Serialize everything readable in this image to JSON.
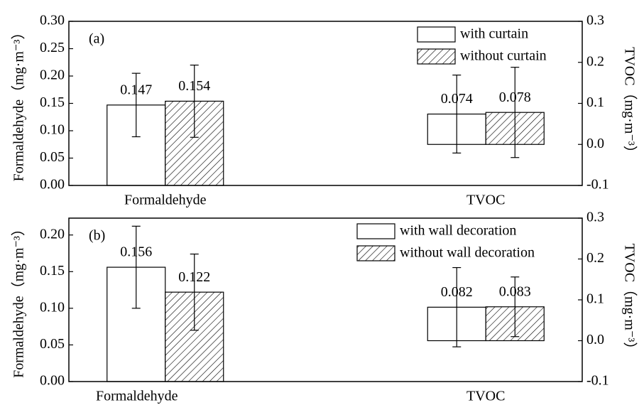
{
  "chart_data": [
    {
      "type": "bar",
      "panel_label": "(a)",
      "categories": [
        "Formaldehyde",
        "TVOC"
      ],
      "category_axis": [
        "y",
        "y2"
      ],
      "series": [
        {
          "name": "with curtain",
          "color": "#ffffff",
          "pattern": "none",
          "values": [
            0.147,
            0.074
          ],
          "errors": [
            0.058,
            0.095
          ]
        },
        {
          "name": "without curtain",
          "color": "#ffffff",
          "pattern": "diagonal",
          "values": [
            0.154,
            0.078
          ],
          "errors": [
            0.066,
            0.11
          ]
        }
      ],
      "ylabel": "Formaldehyde（mg·m⁻³）",
      "y2label": "TVOC（mg·m⁻³）",
      "ylim": [
        0,
        0.3
      ],
      "yticks": [
        {
          "value": 0,
          "label": "0.00"
        },
        0.05,
        {
          "value": 0.1,
          "label": "0.10"
        },
        0.15,
        {
          "value": 0.2,
          "label": "0.20"
        },
        0.25,
        {
          "value": 0.3,
          "label": "0.30"
        }
      ],
      "y2lim": [
        -0.1,
        0.3
      ],
      "y2ticks": [
        -0.1,
        {
          "value": 0,
          "label": "0.0"
        },
        0.1,
        0.2,
        0.3
      ],
      "legend": "upper right"
    },
    {
      "type": "bar",
      "panel_label": "(b)",
      "categories": [
        "Formaldehyde",
        "TVOC"
      ],
      "category_axis": [
        "y",
        "y2"
      ],
      "series": [
        {
          "name": "with wall decoration",
          "color": "#ffffff",
          "pattern": "none",
          "values": [
            0.156,
            0.082
          ],
          "errors": [
            0.056,
            0.097
          ]
        },
        {
          "name": "without wall decoration",
          "color": "#ffffff",
          "pattern": "diagonal",
          "values": [
            0.122,
            0.083
          ],
          "errors": [
            0.052,
            0.073
          ]
        }
      ],
      "ylabel": "Formaldehyde（mg·m⁻³）",
      "y2label": "TVOC（mg·m⁻³）",
      "ylim": [
        0,
        0.223
      ],
      "yticks": [
        {
          "value": 0,
          "label": "0.00"
        },
        0.05,
        {
          "value": 0.1,
          "label": "0.10"
        },
        0.15,
        {
          "value": 0.2,
          "label": "0.20"
        }
      ],
      "y2lim": [
        -0.1,
        0.3
      ],
      "y2ticks": [
        -0.1,
        {
          "value": 0,
          "label": "0.0"
        },
        0.1,
        0.2,
        0.3
      ],
      "legend": "upper right"
    }
  ]
}
